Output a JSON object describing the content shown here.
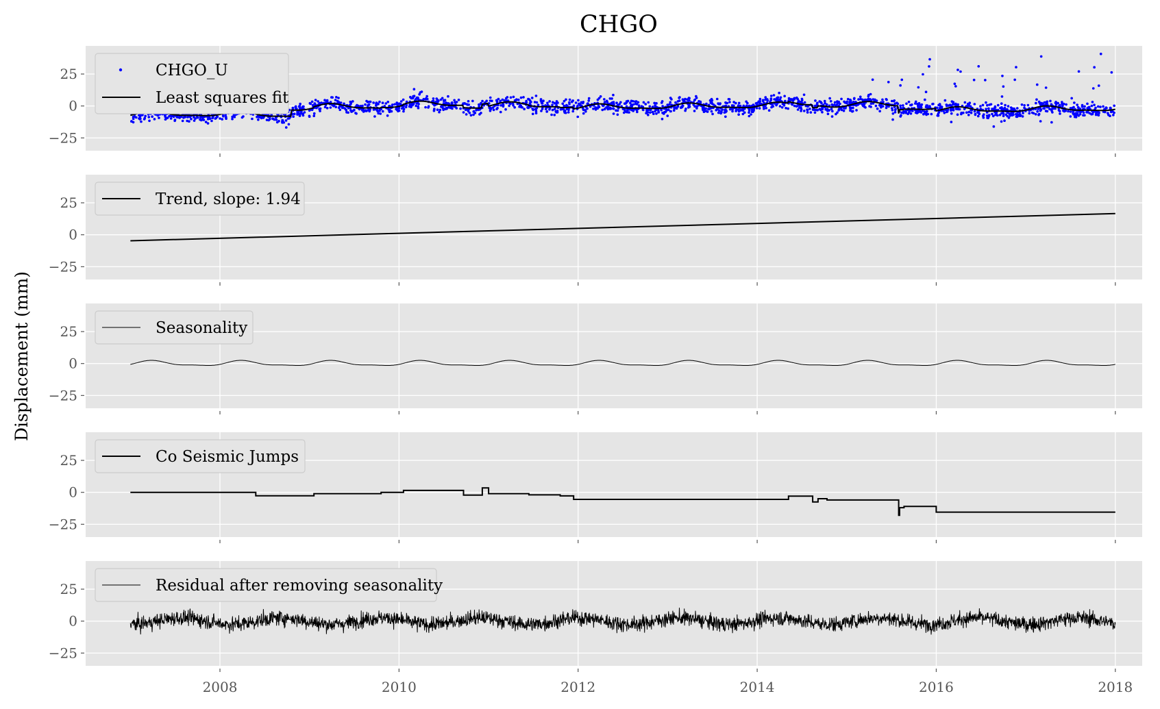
{
  "chart_data": {
    "type": "line",
    "title": "CHGO",
    "ylabel": "Displacement (mm)",
    "x_ticks": [
      "2008",
      "2010",
      "2012",
      "2014",
      "2016",
      "2018"
    ],
    "y_ticks": [
      "25",
      "0",
      "−25"
    ],
    "xlim": [
      2006.5,
      2018.3
    ],
    "ylim": [
      -35,
      47
    ],
    "grid": true,
    "panels": [
      {
        "key": "observed",
        "series": [
          {
            "name": "CHGO_U",
            "style": "points",
            "color": "#0000ff"
          },
          {
            "name": "Least squares fit",
            "style": "line",
            "color": "#000000"
          }
        ]
      },
      {
        "key": "trend",
        "series": [
          {
            "name": "Trend, slope: 1.94",
            "style": "line",
            "color": "#000000",
            "x": [
              2007.0,
              2018.0
            ],
            "y": [
              -4.7,
              16.6
            ]
          }
        ]
      },
      {
        "key": "seasonality",
        "series": [
          {
            "name": "Seasonality",
            "style": "line",
            "color": "#000000",
            "amplitude": 2.2
          }
        ]
      },
      {
        "key": "jumps",
        "series": [
          {
            "name": "Co Seismic Jumps",
            "style": "step",
            "color": "#000000",
            "x": [
              2007.0,
              2008.4,
              2008.4,
              2009.05,
              2009.05,
              2009.8,
              2009.8,
              2010.05,
              2010.05,
              2010.72,
              2010.72,
              2010.93,
              2010.93,
              2011.0,
              2011.0,
              2011.45,
              2011.45,
              2011.8,
              2011.8,
              2011.95,
              2011.95,
              2014.35,
              2014.35,
              2014.62,
              2014.62,
              2014.68,
              2014.68,
              2014.78,
              2014.78,
              2015.58,
              2015.58,
              2015.59,
              2015.59,
              2015.64,
              2015.64,
              2016.0,
              2016.0,
              2018.0
            ],
            "y": [
              0,
              0,
              -2.7,
              -2.7,
              -1.0,
              -1.0,
              0,
              0,
              1.5,
              1.5,
              -2.2,
              -2.2,
              3.5,
              3.5,
              -1.0,
              -1.0,
              -2.0,
              -2.0,
              -2.8,
              -2.8,
              -5.5,
              -5.5,
              -3.0,
              -3.0,
              -7.5,
              -7.5,
              -5.0,
              -5.0,
              -6.0,
              -6.0,
              -18.0,
              -18.0,
              -12.0,
              -12.0,
              -11.0,
              -11.0,
              -15.5,
              -15.5
            ]
          }
        ]
      },
      {
        "key": "residual",
        "series": [
          {
            "name": "Residual after removing seasonality",
            "style": "line",
            "color": "#000000"
          }
        ]
      }
    ]
  }
}
